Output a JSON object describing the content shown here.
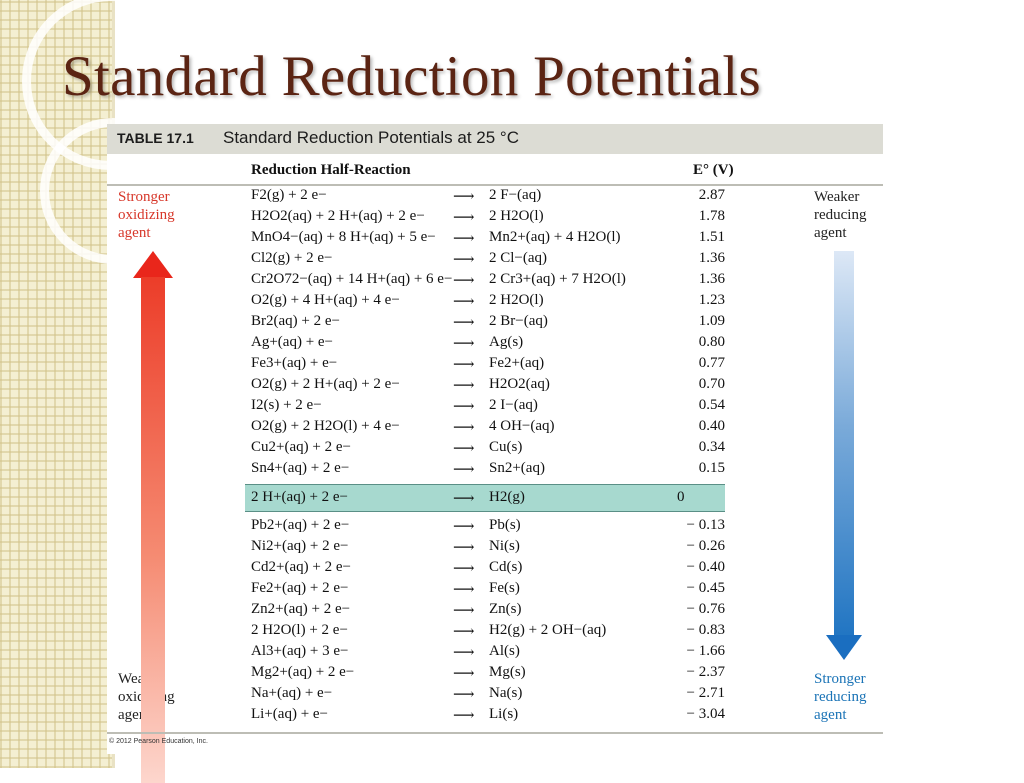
{
  "slide": {
    "title": "Standard Reduction Potentials"
  },
  "table": {
    "label": "TABLE 17.1",
    "caption": "Standard Reduction Potentials at 25 °C",
    "col_reaction": "Reduction Half-Reaction",
    "col_potential": "E° (V)",
    "copyright": "© 2012 Pearson Education, Inc."
  },
  "side": {
    "left_top": "Stronger\noxidizing\nagent",
    "left_bottom": "Weaker\noxidizing\nagent",
    "right_top": "Weaker\nreducing\nagent",
    "right_bottom": "Stronger\nreducing\nagent"
  },
  "colors": {
    "title": "#5b2413",
    "highlight": "#a7d9cf",
    "red_arrow": "#e9261b",
    "blue_arrow": "#1a6ec0"
  },
  "rows": [
    {
      "lhs": "F2(g) + 2 e−",
      "rhs": "2 F−(aq)",
      "e": "2.87"
    },
    {
      "lhs": "H2O2(aq) + 2 H+(aq) + 2 e−",
      "rhs": "2 H2O(l)",
      "e": "1.78"
    },
    {
      "lhs": "MnO4−(aq) + 8 H+(aq) + 5 e−",
      "rhs": "Mn2+(aq) + 4 H2O(l)",
      "e": "1.51"
    },
    {
      "lhs": "Cl2(g) + 2 e−",
      "rhs": "2 Cl−(aq)",
      "e": "1.36"
    },
    {
      "lhs": "Cr2O72−(aq) + 14 H+(aq) + 6 e−",
      "rhs": "2 Cr3+(aq) + 7 H2O(l)",
      "e": "1.36"
    },
    {
      "lhs": "O2(g) + 4 H+(aq) + 4 e−",
      "rhs": "2 H2O(l)",
      "e": "1.23"
    },
    {
      "lhs": "Br2(aq) + 2 e−",
      "rhs": "2 Br−(aq)",
      "e": "1.09"
    },
    {
      "lhs": "Ag+(aq) + e−",
      "rhs": "Ag(s)",
      "e": "0.80"
    },
    {
      "lhs": "Fe3+(aq) + e−",
      "rhs": "Fe2+(aq)",
      "e": "0.77"
    },
    {
      "lhs": "O2(g) + 2 H+(aq) + 2 e−",
      "rhs": "H2O2(aq)",
      "e": "0.70"
    },
    {
      "lhs": "I2(s) + 2 e−",
      "rhs": "2 I−(aq)",
      "e": "0.54"
    },
    {
      "lhs": "O2(g) + 2 H2O(l) + 4 e−",
      "rhs": "4 OH−(aq)",
      "e": "0.40"
    },
    {
      "lhs": "Cu2+(aq) + 2 e−",
      "rhs": "Cu(s)",
      "e": "0.34"
    },
    {
      "lhs": "Sn4+(aq) + 2 e−",
      "rhs": "Sn2+(aq)",
      "e": "0.15"
    },
    {
      "lhs": "2 H+(aq) + 2 e−",
      "rhs": "H2(g)",
      "e": "0",
      "highlight": true
    },
    {
      "lhs": "Pb2+(aq) + 2 e−",
      "rhs": "Pb(s)",
      "e": "− 0.13"
    },
    {
      "lhs": "Ni2+(aq) + 2 e−",
      "rhs": "Ni(s)",
      "e": "− 0.26"
    },
    {
      "lhs": "Cd2+(aq) + 2 e−",
      "rhs": "Cd(s)",
      "e": "− 0.40"
    },
    {
      "lhs": "Fe2+(aq) + 2 e−",
      "rhs": "Fe(s)",
      "e": "− 0.45"
    },
    {
      "lhs": "Zn2+(aq) + 2 e−",
      "rhs": "Zn(s)",
      "e": "− 0.76"
    },
    {
      "lhs": "2 H2O(l) + 2 e−",
      "rhs": "H2(g) + 2 OH−(aq)",
      "e": "− 0.83"
    },
    {
      "lhs": "Al3+(aq) + 3 e−",
      "rhs": "Al(s)",
      "e": "− 1.66"
    },
    {
      "lhs": "Mg2+(aq) + 2 e−",
      "rhs": "Mg(s)",
      "e": "− 2.37"
    },
    {
      "lhs": "Na+(aq) + e−",
      "rhs": "Na(s)",
      "e": "− 2.71"
    },
    {
      "lhs": "Li+(aq) + e−",
      "rhs": "Li(s)",
      "e": "− 3.04"
    }
  ]
}
